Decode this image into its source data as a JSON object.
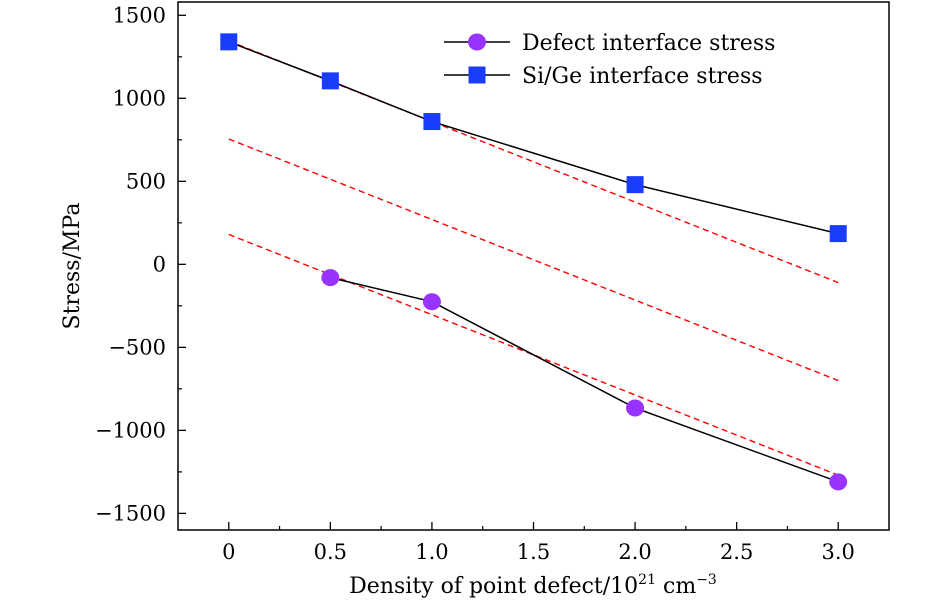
{
  "chart_data": {
    "type": "line",
    "xlabel": "Density of point defect/10",
    "xlabel_sup1": "21",
    "xlabel_unit": " cm",
    "xlabel_sup2": "−3",
    "ylabel": "Stress/MPa",
    "xlim": [
      -0.25,
      3.25
    ],
    "ylim": [
      -1600,
      1580
    ],
    "x_ticks": [
      0,
      0.5,
      1.0,
      1.5,
      2.0,
      2.5,
      3.0
    ],
    "x_tick_labels": [
      "0",
      "0.5",
      "1.0",
      "1.5",
      "2.0",
      "2.5",
      "3.0"
    ],
    "y_ticks": [
      -1500,
      -1000,
      -500,
      0,
      500,
      1000,
      1500
    ],
    "y_tick_labels": [
      "−1500",
      "−1000",
      "−500",
      "0",
      "500",
      "1000",
      "1500"
    ],
    "grid": false,
    "legend_position": "top-right",
    "series": [
      {
        "name": "Defect interface stress",
        "marker": "circle",
        "color": "#9933ff",
        "line_color": "#000000",
        "x": [
          0.5,
          1.0,
          2.0,
          3.0
        ],
        "y": [
          -80,
          -225,
          -865,
          -1310
        ]
      },
      {
        "name": "Si/Ge interface stress",
        "marker": "square",
        "color": "#1a3cff",
        "line_color": "#000000",
        "x": [
          0,
          0.5,
          1.0,
          2.0,
          3.0
        ],
        "y": [
          1340,
          1105,
          860,
          480,
          185
        ]
      }
    ],
    "fit_lines": {
      "color": "#ff0000",
      "style": "dashed",
      "lines": [
        {
          "x": [
            0,
            3.0
          ],
          "y": [
            1345,
            -110
          ]
        },
        {
          "x": [
            0,
            3.0
          ],
          "y": [
            755,
            -700
          ]
        },
        {
          "x": [
            0,
            3.0
          ],
          "y": [
            180,
            -1270
          ]
        }
      ]
    }
  }
}
